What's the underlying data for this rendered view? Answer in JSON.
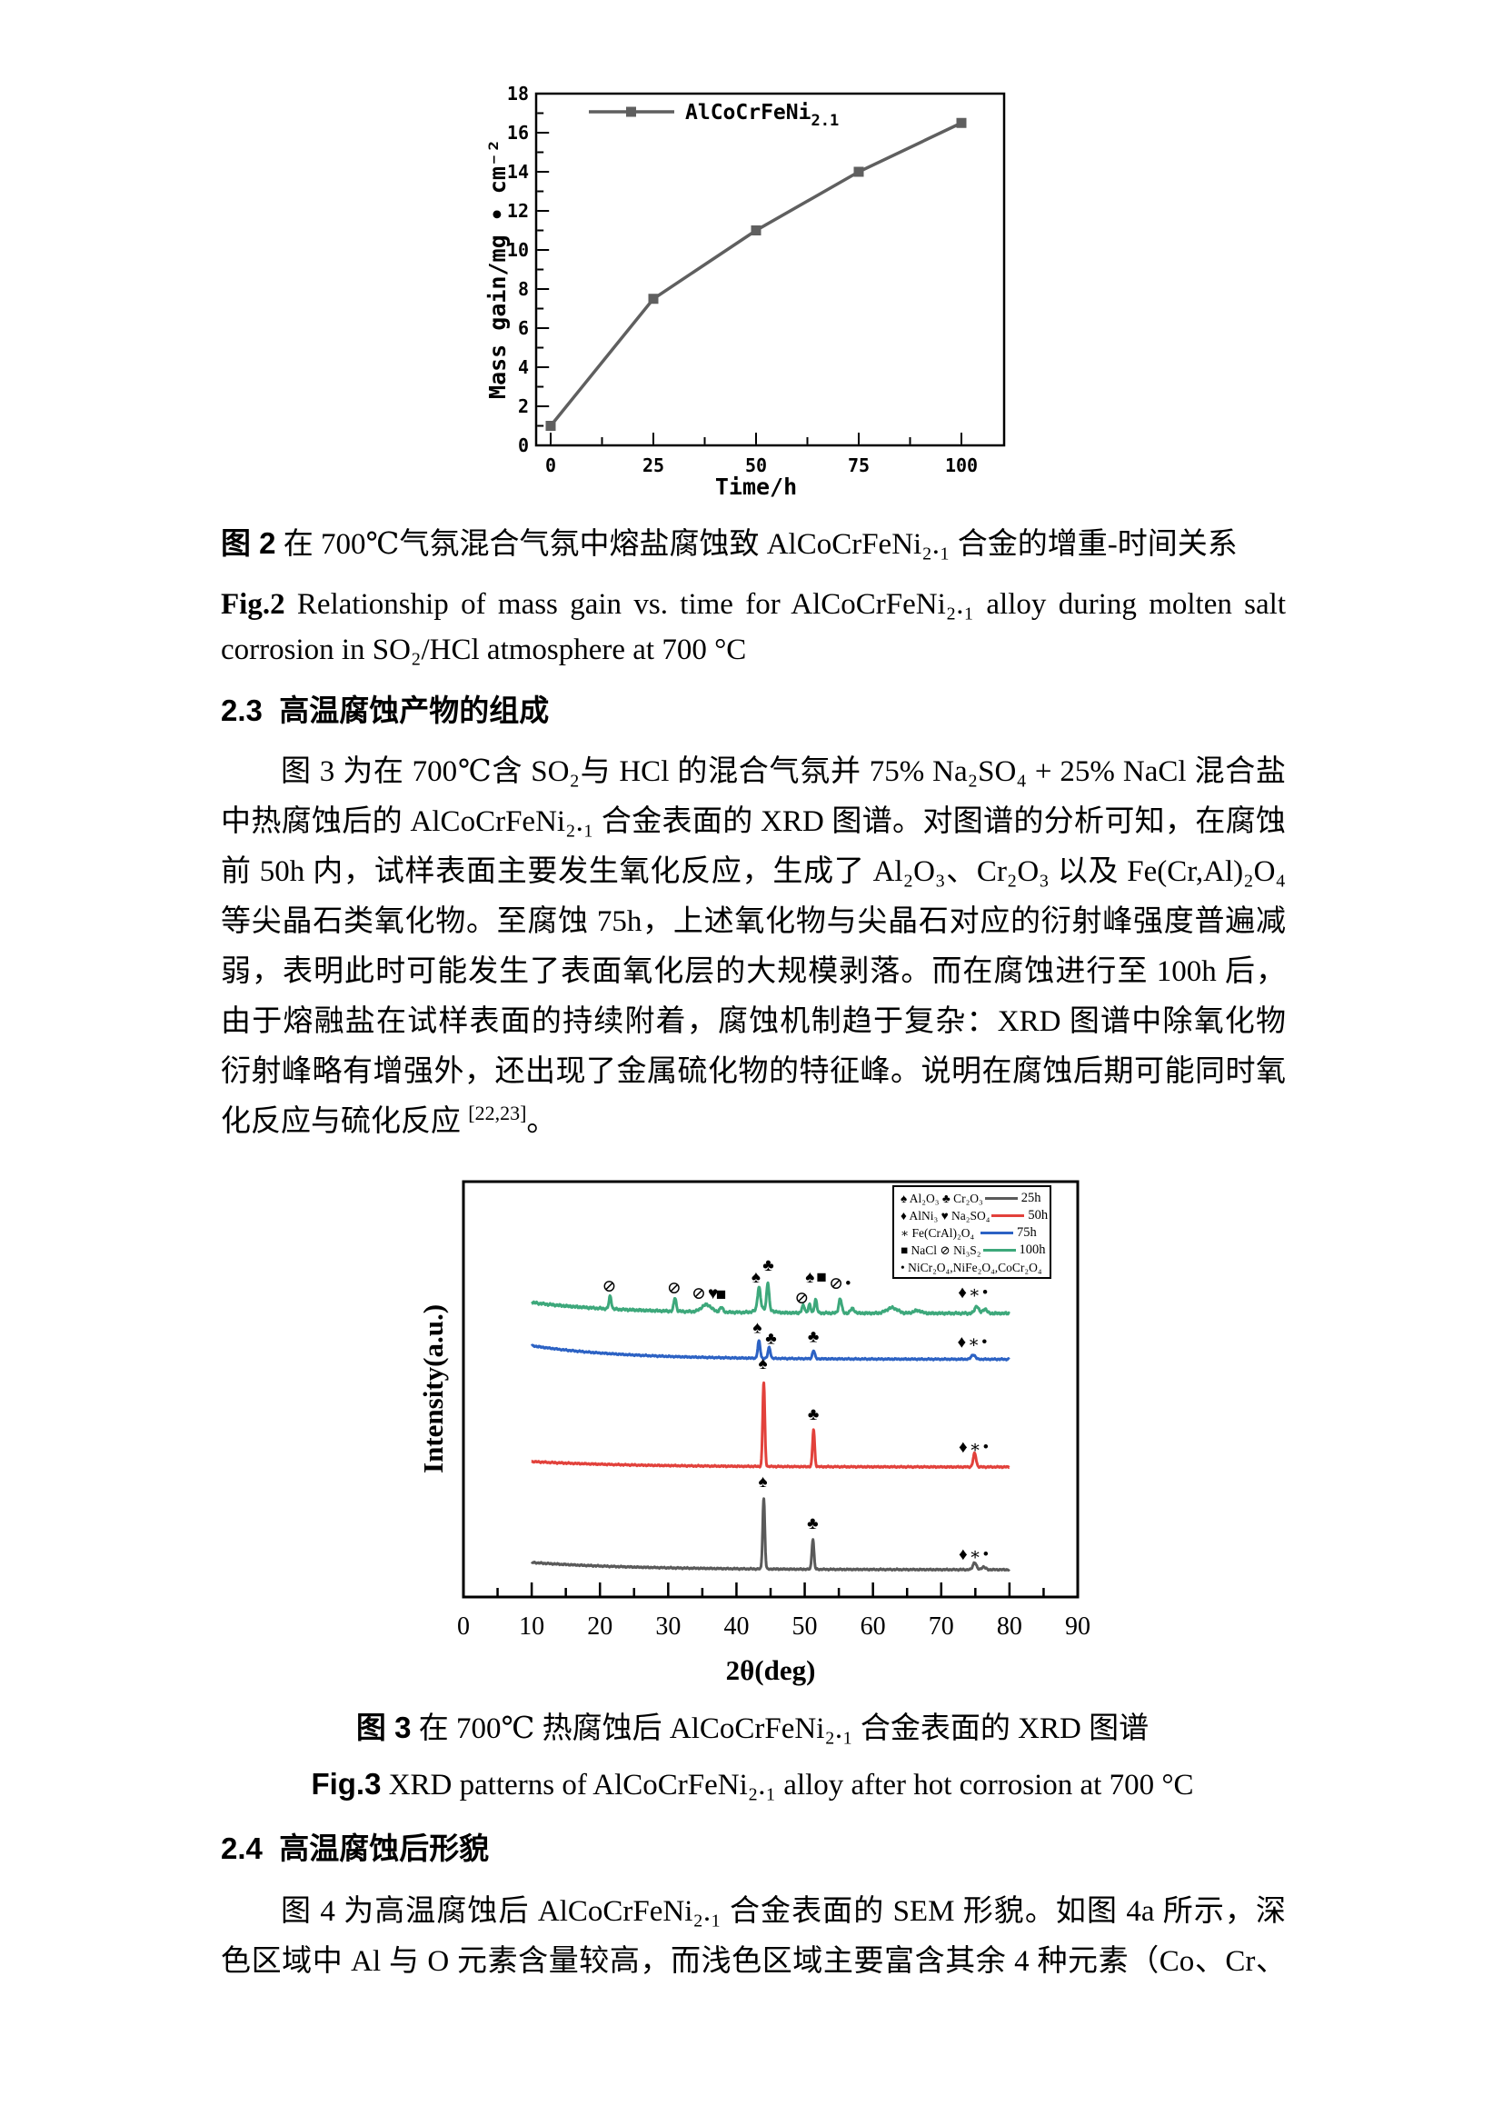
{
  "page": {
    "fig2": {
      "prefix": "图 2",
      "text": "在 700℃气氛混合气氛中熔盐腐蚀致 AlCoCrFeNi₂.₁ 合金的增重-时间关系"
    },
    "fig2en": {
      "prefix": "Fig.2",
      "line1": "Relationship of mass gain vs. time for AlCoCrFeNi₂.₁ alloy during molten salt",
      "line2": "corrosion in SO₂/HCl atmosphere at 700 °C"
    },
    "s23": {
      "num": "2.3",
      "title": "高温腐蚀产物的组成",
      "lines": [
        "图 3 为在 700℃含 SO₂与 HCl 的混合气氛并 75% Na₂SO₄ + 25% NaCl 混合盐",
        "中热腐蚀后的 AlCoCrFeNi₂.₁ 合金表面的 XRD 图谱。对图谱的分析可知，在腐蚀",
        "前 50h 内，试样表面主要发生氧化反应，生成了 Al₂O₃、Cr₂O₃ 以及 Fe(Cr,Al)₂O₄",
        "等尖晶石类氧化物。至腐蚀 75h，上述氧化物与尖晶石对应的衍射峰强度普遍减",
        "弱，表明此时可能发生了表面氧化层的大规模剥落。而在腐蚀进行至 100h 后，",
        "由于熔融盐在试样表面的持续附着，腐蚀机制趋于复杂：XRD 图谱中除氧化物",
        "衍射峰略有增强外，还出现了金属硫化物的特征峰。说明在腐蚀后期可能同时氧"
      ],
      "last_line": {
        "text": "化反应与硫化反应 ",
        "ref": "[22,23]",
        "end": "。"
      }
    },
    "fig3": {
      "prefix": "图 3",
      "text": "在 700℃  热腐蚀后 AlCoCrFeNi₂.₁ 合金表面的 XRD 图谱"
    },
    "fig3en": {
      "prefix": "Fig.3",
      "text": "XRD patterns of AlCoCrFeNi₂.₁ alloy after hot corrosion at 700 °C"
    },
    "s24": {
      "num": "2.4",
      "title": "高温腐蚀后形貌",
      "lines": [
        "图 4 为高温腐蚀后 AlCoCrFeNi₂.₁ 合金表面的 SEM 形貌。如图 4a 所示，深",
        "色区域中 Al 与 O 元素含量较高，而浅色区域主要富含其余 4 种元素（Co、Cr、"
      ]
    }
  },
  "chart_data": [
    {
      "type": "line",
      "name": "mass-gain-vs-time",
      "title": "",
      "xlabel": "Time/h",
      "ylabel": "Mass gain/mg • cm⁻²",
      "xlim": [
        0,
        100
      ],
      "ylim": [
        0,
        18
      ],
      "xticks": [
        0,
        25,
        50,
        75,
        100
      ],
      "yticks": [
        0,
        2,
        4,
        6,
        8,
        10,
        12,
        14,
        16,
        18
      ],
      "legend": {
        "label": "AlCoCrFeNi",
        "sub": "2.1",
        "position": "top-left"
      },
      "grid": false,
      "series": [
        {
          "name": "AlCoCrFeNi2.1",
          "color": "#5f5f5f",
          "x": [
            0,
            25,
            50,
            75,
            100
          ],
          "y": [
            1.0,
            7.5,
            11.0,
            14.0,
            16.5
          ]
        }
      ]
    },
    {
      "type": "line",
      "name": "xrd-patterns",
      "title": "",
      "xlabel": "2θ(deg)",
      "ylabel": "Intensity(a.u.)",
      "xlim": [
        0,
        90
      ],
      "xticks": [
        0,
        10,
        20,
        30,
        40,
        50,
        60,
        70,
        80,
        90
      ],
      "trace_range": [
        10,
        80
      ],
      "grid": false,
      "series": [
        {
          "name": "100h",
          "color": "#3da87b",
          "baseline": 1445,
          "lift": 12,
          "tau": 13,
          "noise": 1.3,
          "ph": 1.1,
          "peaks": [
            {
              "c": 21.5,
              "h": 14,
              "w": 0.25
            },
            {
              "c": 31.0,
              "h": 15,
              "w": 0.25
            },
            {
              "c": 35.6,
              "h": 8,
              "w": 1.0
            },
            {
              "c": 37.8,
              "h": 5,
              "w": 0.35
            },
            {
              "c": 43.3,
              "h": 25,
              "w": 0.3
            },
            {
              "c": 44.6,
              "h": 30,
              "w": 0.25
            },
            {
              "c": 44.0,
              "h": 4,
              "w": 1.5
            },
            {
              "c": 49.8,
              "h": 8,
              "w": 0.3
            },
            {
              "c": 50.7,
              "h": 9,
              "w": 0.25
            },
            {
              "c": 51.6,
              "h": 15,
              "w": 0.25
            },
            {
              "c": 55.2,
              "h": 16,
              "w": 0.3
            },
            {
              "c": 57.0,
              "h": 5,
              "w": 0.4
            },
            {
              "c": 62.8,
              "h": 6,
              "w": 1.1
            },
            {
              "c": 66.5,
              "h": 3,
              "w": 0.8
            },
            {
              "c": 75.2,
              "h": 8,
              "w": 0.4
            },
            {
              "c": 76.4,
              "h": 5,
              "w": 0.4
            }
          ],
          "markers": [
            {
              "d": 21.5,
              "dy": 30,
              "t": "⊘"
            },
            {
              "d": 31.0,
              "dy": 28,
              "t": "⊘"
            },
            {
              "d": 35.5,
              "dy": 22,
              "t": "⊘♥"
            },
            {
              "d": 37.9,
              "dy": 21,
              "t": "■"
            },
            {
              "d": 43.0,
              "dy": 40,
              "t": "♠"
            },
            {
              "d": 44.8,
              "dy": 53,
              "t": "♣"
            },
            {
              "d": 49.7,
              "dy": 17,
              "t": "⊘"
            },
            {
              "d": 51.8,
              "dy": 40,
              "t": "♠■"
            },
            {
              "d": 55.3,
              "dy": 33,
              "t": "⊘•"
            },
            {
              "d": 74.8,
              "dy": 23,
              "t": "♦∗•"
            }
          ]
        },
        {
          "name": "75h",
          "color": "#2c62c4",
          "baseline": 1495.5,
          "lift": 15,
          "tau": 13,
          "noise": 0.8,
          "ph": 2.3,
          "peaks": [
            {
              "c": 43.3,
              "h": 19,
              "w": 0.25
            },
            {
              "c": 44.8,
              "h": 12,
              "w": 0.25
            },
            {
              "c": 51.3,
              "h": 9,
              "w": 0.25
            },
            {
              "c": 74.7,
              "h": 5,
              "w": 0.4
            }
          ],
          "markers": [
            {
              "d": 43.2,
              "dy": 35,
              "t": "♠"
            },
            {
              "d": 45.2,
              "dy": 23,
              "t": "♣"
            },
            {
              "d": 51.4,
              "dy": 25,
              "t": "♣"
            },
            {
              "d": 74.7,
              "dy": 19,
              "t": "♦∗•"
            }
          ]
        },
        {
          "name": "50h",
          "color": "#e2413b",
          "baseline": 1614,
          "lift": 6,
          "tau": 15,
          "noise": 0.8,
          "ph": 3.7,
          "peaks": [
            {
              "c": 44.0,
              "h": 93,
              "w": 0.22
            },
            {
              "c": 51.3,
              "h": 41,
              "w": 0.22
            },
            {
              "c": 74.9,
              "h": 15,
              "w": 0.3
            }
          ],
          "markers": [
            {
              "d": 44.0,
              "dy": 114,
              "t": "♠"
            },
            {
              "d": 51.4,
              "dy": 58,
              "t": "♣"
            },
            {
              "d": 74.9,
              "dy": 22,
              "t": "♦∗•"
            }
          ]
        },
        {
          "name": "25h",
          "color": "#5a5a5a",
          "baseline": 1727,
          "lift": 8,
          "tau": 15,
          "noise": 0.8,
          "ph": 5.2,
          "peaks": [
            {
              "c": 44.0,
              "h": 78,
              "w": 0.22
            },
            {
              "c": 51.2,
              "h": 33,
              "w": 0.22
            },
            {
              "c": 74.9,
              "h": 8,
              "w": 0.35
            },
            {
              "c": 76.2,
              "h": 3,
              "w": 0.4
            }
          ],
          "markers": [
            {
              "d": 44.0,
              "dy": 97,
              "t": "♠"
            },
            {
              "d": 51.3,
              "dy": 51,
              "t": "♣"
            },
            {
              "d": 74.9,
              "dy": 17,
              "t": "♦∗•"
            }
          ]
        }
      ],
      "legend_rows": [
        {
          "symbols": "♠ Al₂O₃   ♣ Cr₂O₃",
          "color": "#5a5a5a",
          "label": "25h"
        },
        {
          "symbols": "♦ AlNi₃  ♥ Na₂SO₄",
          "color": "#e2413b",
          "label": "50h"
        },
        {
          "symbols": "∗ Fe(CrAl)₂O₄",
          "color": "#2c62c4",
          "label": "75h"
        },
        {
          "symbols": "■ NaCl   ⊘ Ni₃S₂",
          "color": "#3da87b",
          "label": "100h"
        },
        {
          "symbols": "• NiCr₂O₄,NiFe₂O₄,CoCr₂O₄",
          "color": "",
          "label": ""
        }
      ]
    }
  ]
}
